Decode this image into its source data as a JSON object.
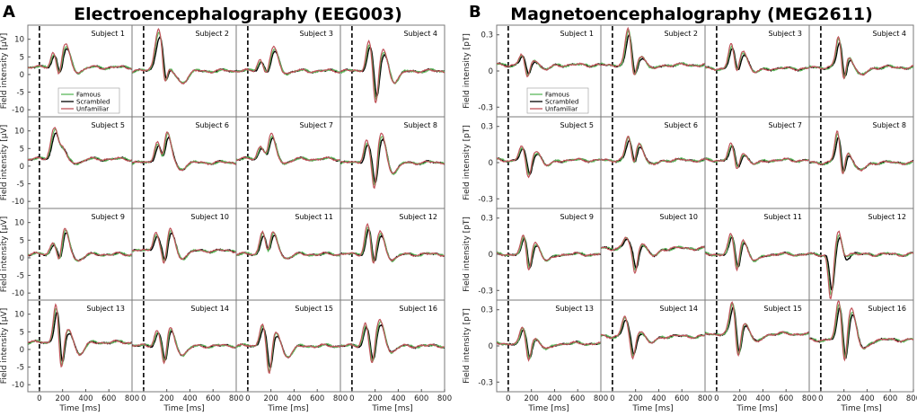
{
  "colors": {
    "famous": "#5cb85c",
    "scrambled": "#000000",
    "unfamiliar": "#c0545a"
  },
  "chart_data": [
    {
      "type": "line",
      "panel_letter": "A",
      "title": "Electroencephalography (EEG003)",
      "xlabel": "Time [ms]",
      "ylabel": "Field intensity [μV]",
      "xlim": [
        -100,
        800
      ],
      "ylim": [
        -12,
        14
      ],
      "xticks": [
        0,
        200,
        400,
        600,
        800
      ],
      "yticks": [
        -10,
        -5,
        0,
        5,
        10
      ],
      "stimulus_onset_ms": 0,
      "legend": [
        "Famous",
        "Scrambled",
        "Unfamiliar"
      ],
      "legend_location": "subject-1 panel, lower-left",
      "subjects": [
        {
          "label": "Subject 1",
          "p1": [
            4,
            125
          ],
          "n1": [
            -4,
            175
          ],
          "p2": [
            6,
            230
          ],
          "base": 2
        },
        {
          "label": "Subject 2",
          "p1": [
            3,
            120
          ],
          "n1": [
            -9,
            185
          ],
          "p2": [
            10,
            150
          ],
          "base": 1
        },
        {
          "label": "Subject 3",
          "p1": [
            3,
            110
          ],
          "n1": [
            -2,
            170
          ],
          "p2": [
            6,
            230
          ],
          "base": 1
        },
        {
          "label": "Subject 4",
          "p1": [
            8,
            150
          ],
          "n1": [
            -10,
            210
          ],
          "p2": [
            6,
            280
          ],
          "base": 1
        },
        {
          "label": "Subject 5",
          "p1": [
            3,
            120
          ],
          "n1": [
            -3,
            175
          ],
          "p2": [
            8,
            160
          ],
          "base": 2
        },
        {
          "label": "Subject 6",
          "p1": [
            5,
            120
          ],
          "n1": [
            -5,
            170
          ],
          "p2": [
            9,
            200
          ],
          "base": 1
        },
        {
          "label": "Subject 7",
          "p1": [
            3,
            110
          ],
          "n1": [
            -3,
            170
          ],
          "p2": [
            7,
            200
          ],
          "base": 2
        },
        {
          "label": "Subject 8",
          "p1": [
            6,
            130
          ],
          "n1": [
            -9,
            200
          ],
          "p2": [
            8,
            260
          ],
          "base": 1
        },
        {
          "label": "Subject 9",
          "p1": [
            3,
            120
          ],
          "n1": [
            -5,
            180
          ],
          "p2": [
            7,
            220
          ],
          "base": 1
        },
        {
          "label": "Subject 10",
          "p1": [
            5,
            110
          ],
          "n1": [
            -6,
            185
          ],
          "p2": [
            6,
            230
          ],
          "base": 2
        },
        {
          "label": "Subject 11",
          "p1": [
            6,
            130
          ],
          "n1": [
            -3,
            180
          ],
          "p2": [
            6,
            220
          ],
          "base": 1
        },
        {
          "label": "Subject 12",
          "p1": [
            8,
            140
          ],
          "n1": [
            -5,
            190
          ],
          "p2": [
            6,
            250
          ],
          "base": 1
        },
        {
          "label": "Subject 13",
          "p1": [
            11,
            150
          ],
          "n1": [
            -10,
            190
          ],
          "p2": [
            4,
            260
          ],
          "base": 2
        },
        {
          "label": "Subject 14",
          "p1": [
            4,
            120
          ],
          "n1": [
            -7,
            185
          ],
          "p2": [
            5,
            230
          ],
          "base": 1
        },
        {
          "label": "Subject 15",
          "p1": [
            6,
            130
          ],
          "n1": [
            -9,
            190
          ],
          "p2": [
            4,
            250
          ],
          "base": 1
        },
        {
          "label": "Subject 16",
          "p1": [
            6,
            120
          ],
          "n1": [
            -6,
            180
          ],
          "p2": [
            7,
            250
          ],
          "base": 1
        }
      ]
    },
    {
      "type": "line",
      "panel_letter": "B",
      "title": "Magnetoencephalography (MEG2611)",
      "xlabel": "Time [ms]",
      "ylabel": "Field intensity [pT]",
      "xlim": [
        -100,
        800
      ],
      "ylim": [
        -0.38,
        0.38
      ],
      "xticks": [
        0,
        200,
        400,
        600,
        800
      ],
      "yticks": [
        -0.3,
        0,
        0.3
      ],
      "ytick_labels": [
        "-0.3",
        "0",
        "0.3"
      ],
      "stimulus_onset_ms": 0,
      "legend": [
        "Famous",
        "Scrambled",
        "Unfamiliar"
      ],
      "legend_location": "subject-1 panel, lower-left",
      "subjects": [
        {
          "label": "Subject 1",
          "p1": [
            0.08,
            120
          ],
          "n1": [
            -0.12,
            170
          ],
          "p2": [
            0.05,
            230
          ],
          "base": 0.05
        },
        {
          "label": "Subject 2",
          "p1": [
            0.28,
            140
          ],
          "n1": [
            -0.12,
            190
          ],
          "p2": [
            0.08,
            260
          ],
          "base": 0.05
        },
        {
          "label": "Subject 3",
          "p1": [
            0.18,
            130
          ],
          "n1": [
            -0.1,
            180
          ],
          "p2": [
            0.15,
            230
          ],
          "base": 0.02
        },
        {
          "label": "Subject 4",
          "p1": [
            0.25,
            160
          ],
          "n1": [
            -0.2,
            200
          ],
          "p2": [
            0.1,
            240
          ],
          "base": 0.03
        },
        {
          "label": "Subject 5",
          "p1": [
            0.1,
            120
          ],
          "n1": [
            -0.15,
            180
          ],
          "p2": [
            0.08,
            250
          ],
          "base": 0.02
        },
        {
          "label": "Subject 6",
          "p1": [
            0.18,
            140
          ],
          "n1": [
            -0.12,
            190
          ],
          "p2": [
            0.15,
            230
          ],
          "base": 0.02
        },
        {
          "label": "Subject 7",
          "p1": [
            0.12,
            130
          ],
          "n1": [
            -0.1,
            180
          ],
          "p2": [
            0.06,
            230
          ],
          "base": 0.02
        },
        {
          "label": "Subject 8",
          "p1": [
            0.25,
            150
          ],
          "n1": [
            -0.2,
            190
          ],
          "p2": [
            0.1,
            230
          ],
          "base": 0.0
        },
        {
          "label": "Subject 9",
          "p1": [
            0.15,
            140
          ],
          "n1": [
            -0.18,
            180
          ],
          "p2": [
            0.1,
            240
          ],
          "base": 0.0
        },
        {
          "label": "Subject 10",
          "p1": [
            0.08,
            120
          ],
          "n1": [
            -0.2,
            200
          ],
          "p2": [
            0.05,
            260
          ],
          "base": 0.05
        },
        {
          "label": "Subject 11",
          "p1": [
            0.15,
            130
          ],
          "n1": [
            -0.18,
            180
          ],
          "p2": [
            0.12,
            230
          ],
          "base": 0.0
        },
        {
          "label": "Subject 12",
          "p1": [
            0.18,
            160
          ],
          "n1": [
            -0.35,
            90
          ],
          "p2": [
            0.12,
            250
          ],
          "base": 0.0
        },
        {
          "label": "Subject 13",
          "p1": [
            0.12,
            130
          ],
          "n1": [
            -0.15,
            180
          ],
          "p2": [
            0.05,
            240
          ],
          "base": 0.02
        },
        {
          "label": "Subject 14",
          "p1": [
            0.15,
            110
          ],
          "n1": [
            -0.18,
            180
          ],
          "p2": [
            0.05,
            250
          ],
          "base": 0.08
        },
        {
          "label": "Subject 15",
          "p1": [
            0.25,
            140
          ],
          "n1": [
            -0.22,
            190
          ],
          "p2": [
            0.1,
            250
          ],
          "base": 0.1
        },
        {
          "label": "Subject 16",
          "p1": [
            0.3,
            160
          ],
          "n1": [
            -0.25,
            210
          ],
          "p2": [
            0.25,
            270
          ],
          "base": 0.05
        }
      ]
    }
  ]
}
